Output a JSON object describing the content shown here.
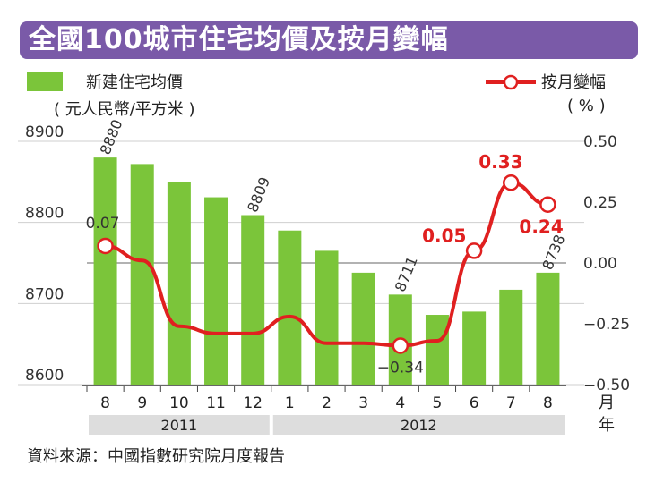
{
  "title": "全國100城市住宅均價及按月變幅",
  "legend": {
    "bar_label": "新建住宅均價",
    "bar_unit": "( 元人民幣/平方米 )",
    "line_label": "按月變幅",
    "line_unit": "( % )"
  },
  "axis": {
    "x_month_suffix": "月",
    "x_year_suffix": "年"
  },
  "source": "資料來源：中國指數研究院月度報告",
  "colors": {
    "title_bg": "#7a5aa8",
    "bar": "#7bc53a",
    "line": "#e02020",
    "zero_line": "#999999",
    "year_band": "#dddddd"
  },
  "chart_data": {
    "type": "bar",
    "categories": [
      "8",
      "9",
      "10",
      "11",
      "12",
      "1",
      "2",
      "3",
      "4",
      "5",
      "6",
      "7",
      "8"
    ],
    "years": [
      {
        "label": "2011",
        "count": 5
      },
      {
        "label": "2012",
        "count": 8
      }
    ],
    "series": [
      {
        "name": "新建住宅均價",
        "type": "bar",
        "axis": "left",
        "values": [
          8880,
          8872,
          8850,
          8831,
          8809,
          8790,
          8765,
          8738,
          8711,
          8686,
          8690,
          8717,
          8738
        ]
      },
      {
        "name": "按月變幅",
        "type": "line",
        "axis": "right",
        "values": [
          0.07,
          0.01,
          -0.26,
          -0.29,
          -0.29,
          -0.22,
          -0.33,
          -0.33,
          -0.34,
          -0.32,
          0.05,
          0.33,
          0.24
        ]
      }
    ],
    "bar_labels": [
      {
        "index": 0,
        "text": "8880"
      },
      {
        "index": 4,
        "text": "8809"
      },
      {
        "index": 8,
        "text": "8711"
      },
      {
        "index": 12,
        "text": "8738"
      }
    ],
    "line_labels": [
      {
        "index": 0,
        "text": "0.07"
      },
      {
        "index": 8,
        "text": "-0.34"
      },
      {
        "index": 10,
        "text": "0.05"
      },
      {
        "index": 11,
        "text": "0.33"
      },
      {
        "index": 12,
        "text": "0.24"
      }
    ],
    "y_left": {
      "ylim": [
        8600,
        8900
      ],
      "ticks": [
        "8600",
        "8700",
        "8800",
        "8900"
      ]
    },
    "y_right": {
      "ylim": [
        -0.5,
        0.5
      ],
      "ticks": [
        "-0.50",
        "-0.25",
        "0.00",
        "0.25",
        "0.50"
      ]
    },
    "markers_on": [
      0,
      8,
      10,
      11,
      12
    ]
  }
}
